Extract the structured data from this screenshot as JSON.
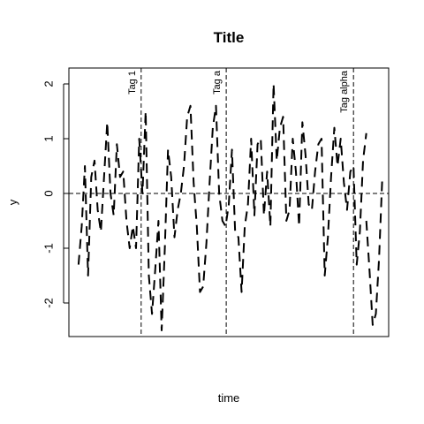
{
  "chart_data": {
    "type": "line",
    "title": "Title",
    "xlabel": "time",
    "ylabel": "y",
    "xlim": [
      0,
      100
    ],
    "ylim": [
      -2.6,
      2.3
    ],
    "yticks": [
      {
        "value": -2,
        "label": "-2"
      },
      {
        "value": -1,
        "label": "-1"
      },
      {
        "value": 0,
        "label": "0"
      },
      {
        "value": 1,
        "label": "1"
      },
      {
        "value": 2,
        "label": "2"
      }
    ],
    "x_axis_ticks_shown": false,
    "grid": false,
    "line_style": "dashed",
    "line_color": "#000000",
    "reference_lines": [
      {
        "axis": "h",
        "value": 0,
        "style": "dashed"
      }
    ],
    "tags": [
      {
        "label": "Tag 1",
        "x": 22.6
      },
      {
        "label": "Tag a",
        "x": 49.2
      },
      {
        "label": "Tag alpha",
        "x": 89.0
      }
    ],
    "series": [
      {
        "x": [
          3,
          4,
          5,
          6,
          7,
          8,
          9,
          10,
          11,
          12,
          13,
          14,
          15,
          16,
          17,
          18,
          19,
          20,
          21,
          22,
          23,
          24,
          25,
          26,
          27,
          28,
          29,
          30,
          31,
          32,
          33,
          34,
          35,
          36,
          37,
          38,
          39,
          40,
          41,
          42,
          43,
          44,
          45,
          46,
          47,
          48,
          49,
          50,
          51,
          52,
          53,
          54,
          55,
          56,
          57,
          58,
          59,
          60,
          61,
          62,
          63,
          64,
          65,
          66,
          67,
          68,
          69,
          70,
          71,
          72,
          73,
          74,
          75,
          76,
          77,
          78,
          79,
          80,
          81,
          82,
          83,
          84,
          85,
          86,
          87,
          88,
          89,
          90,
          91,
          92,
          93
        ],
        "y": [
          -1.3,
          -0.6,
          0.5,
          -1.5,
          0.3,
          0.6,
          -0.3,
          -0.7,
          0.3,
          1.3,
          0.0,
          -0.4,
          0.9,
          0.3,
          0.4,
          -0.5,
          -1.0,
          -0.6,
          -1.0,
          1.0,
          0.0,
          1.5,
          -1.5,
          -2.2,
          -1.4,
          -0.5,
          -2.5,
          -1.0,
          0.8,
          0.3,
          -0.8,
          -0.3,
          0.0,
          0.5,
          1.4,
          1.6,
          0.2,
          -0.6,
          -1.8,
          -1.7,
          -0.9,
          0.2,
          1.2,
          1.6,
          0.0,
          -0.5,
          -0.6,
          -0.2,
          0.8,
          -0.7,
          -0.8,
          -1.8,
          -0.6,
          -0.2,
          1.0,
          -0.4,
          0.9,
          1.0,
          -0.4,
          0.4,
          -0.6,
          2.0,
          0.6,
          1.2,
          1.4,
          -0.5,
          -0.3,
          1.0,
          0.4,
          -0.6,
          1.3,
          0.7,
          -0.2,
          -0.3,
          0.4,
          0.9,
          1.0,
          -1.5,
          -0.8,
          0.3,
          1.2,
          0.5,
          1.0,
          0.2,
          -0.3,
          0.4,
          0.5,
          -1.3,
          -0.7,
          0.6,
          1.1
        ]
      },
      {
        "x": [
          93,
          94,
          95,
          96,
          97,
          98
        ],
        "y": [
          -0.5,
          -1.4,
          -2.4,
          -2.2,
          -1.2,
          0.3
        ]
      }
    ]
  }
}
